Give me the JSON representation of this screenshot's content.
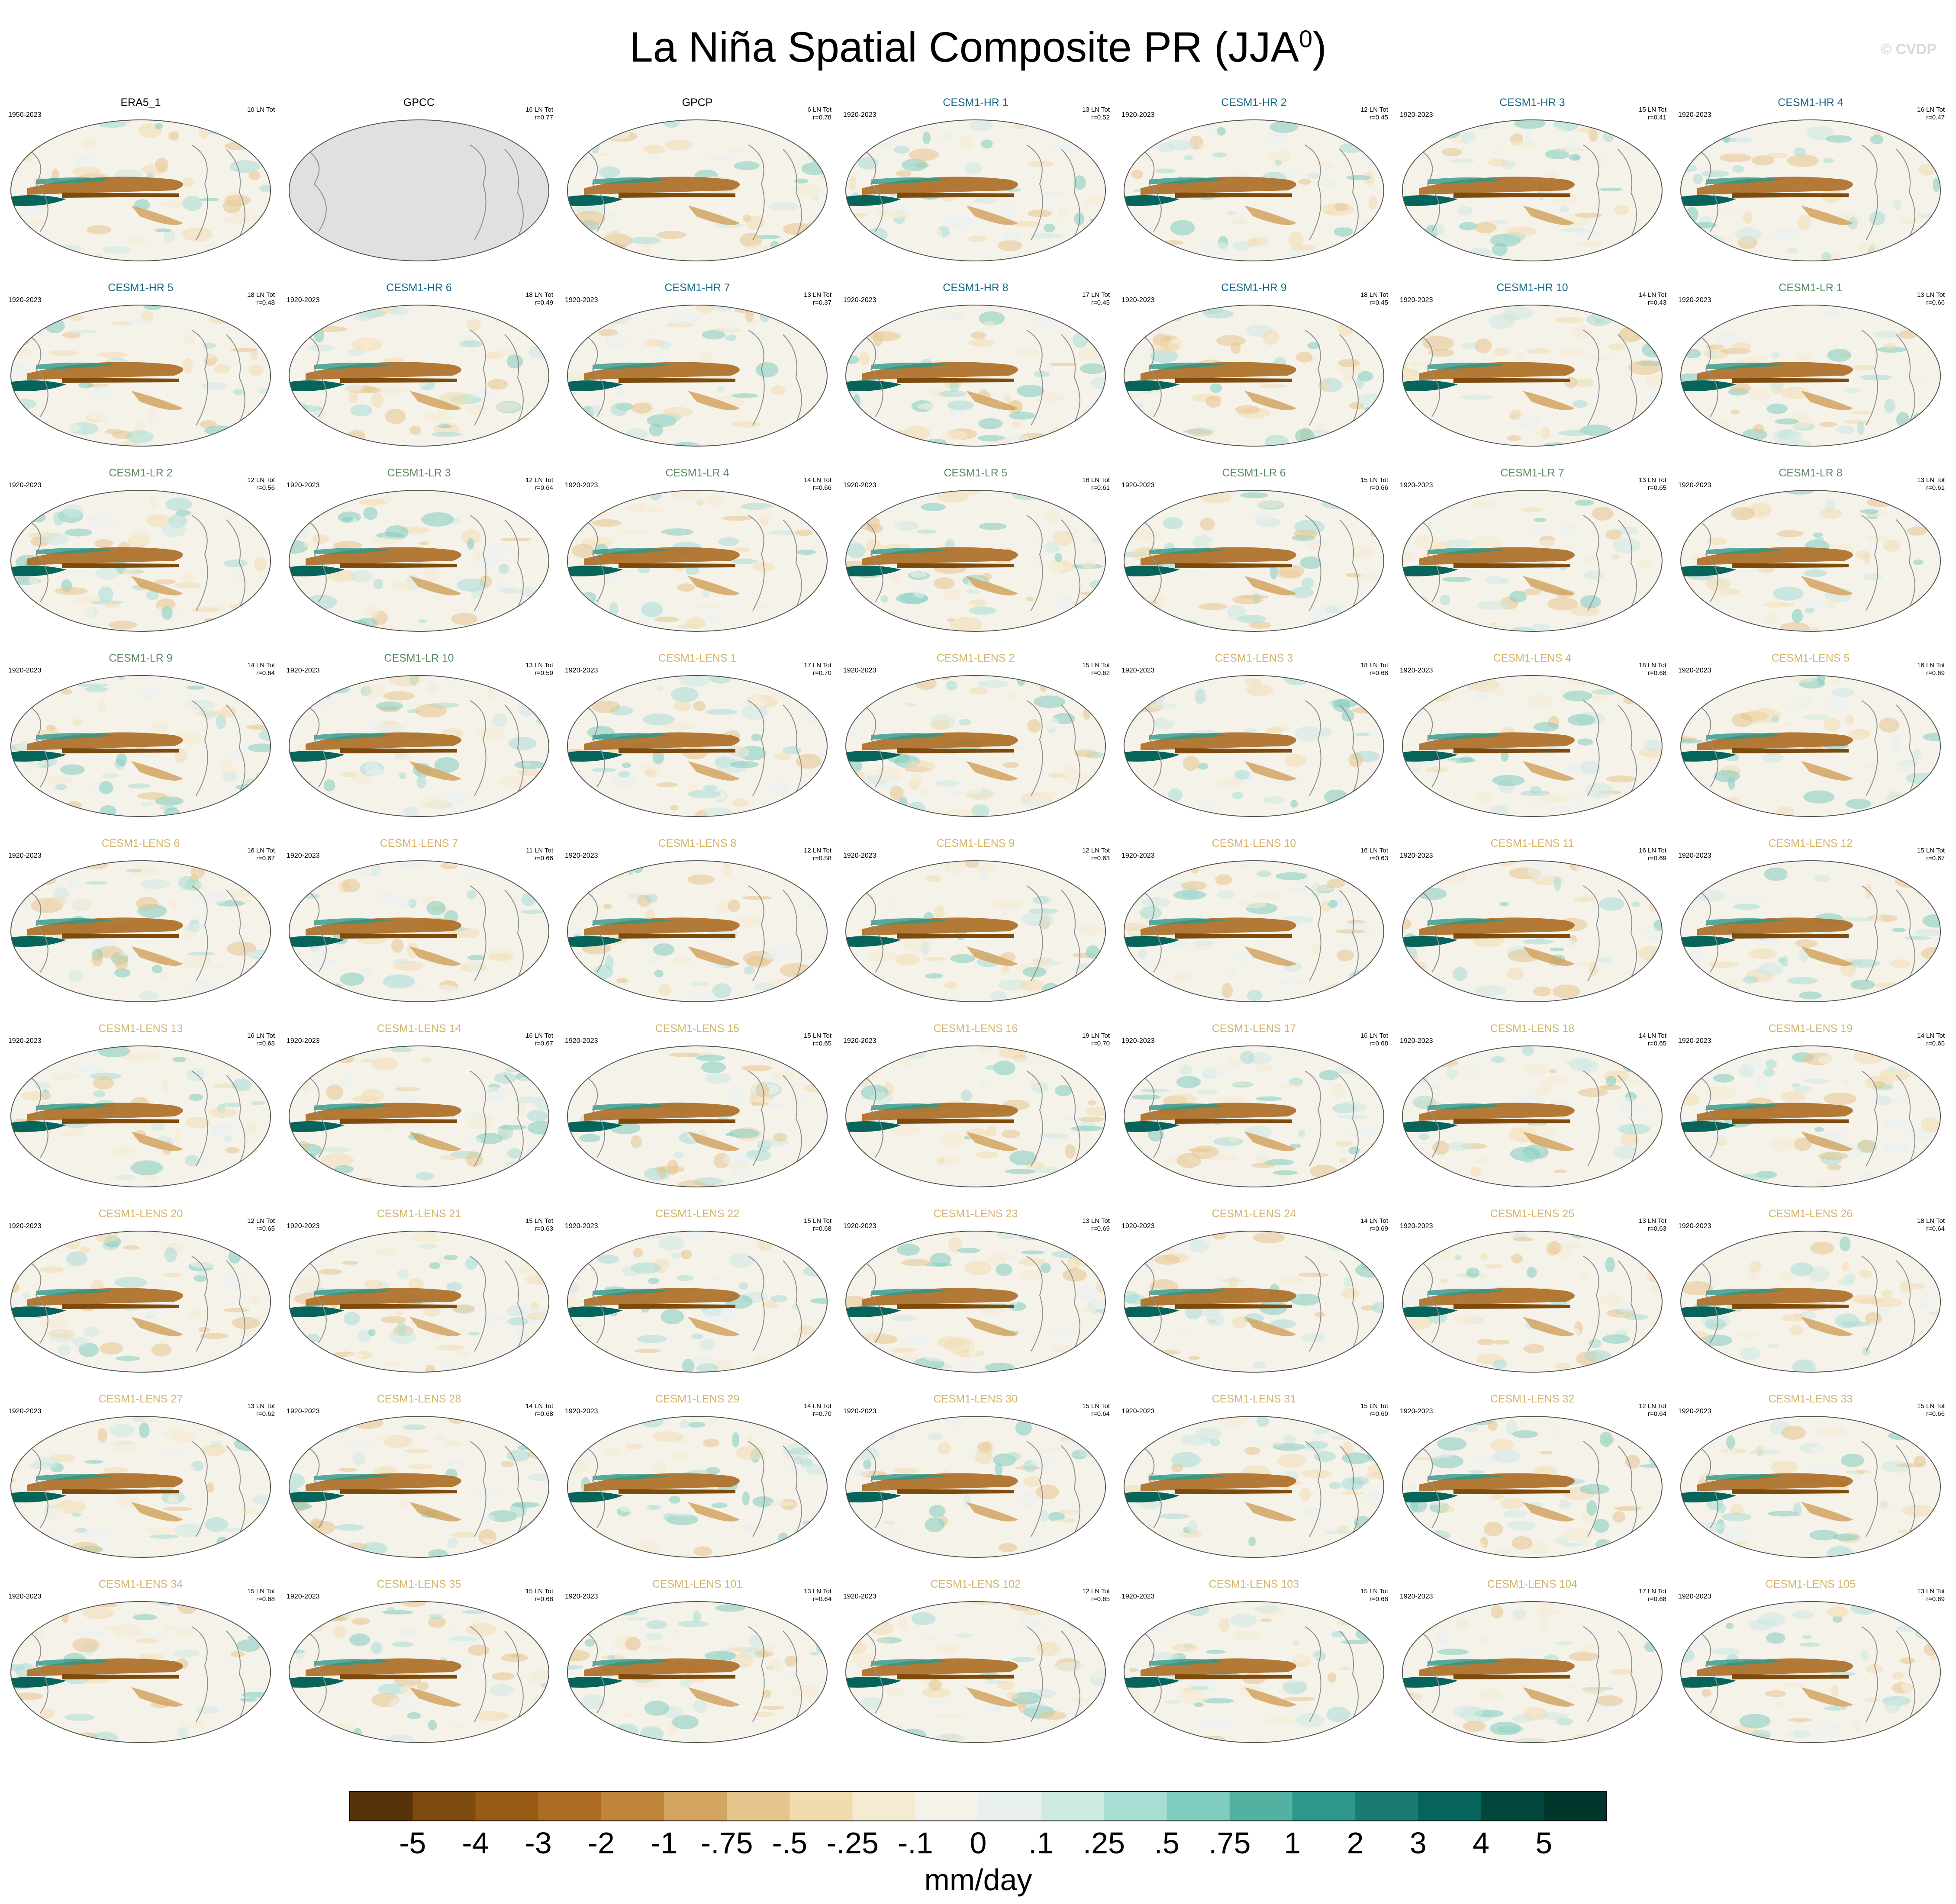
{
  "title": {
    "main": "La Niña Spatial Composite PR (JJA",
    "superscript": "0",
    "close": ")"
  },
  "credit": "© CVDP",
  "colors": {
    "observed_title": "#000000",
    "cesm1_hr_title": "#1a6a86",
    "cesm1_lr_title": "#5c8a63",
    "cesm1_lens_title": "#d4b36a",
    "land_fill_gpcc": "#e0e0e0",
    "coastline": "#8c8c8c"
  },
  "chart_data": {
    "type": "heatmap",
    "description_unit": "mm/day",
    "projection": "global ellipse (Robinson-like), Pacific-centered",
    "grid": {
      "rows": 9,
      "cols": 7
    },
    "colorbar": {
      "label": "mm/day",
      "tick_labels": [
        "-5",
        "-4",
        "-3",
        "-2",
        "-1",
        "-.75",
        "-.5",
        "-.25",
        "-.1",
        "0",
        ".1",
        ".25",
        ".5",
        ".75",
        "1",
        "2",
        "3",
        "4",
        "5"
      ],
      "colors": [
        "#573309",
        "#7e4b0f",
        "#985b16",
        "#ac6c23",
        "#bf8539",
        "#d2a561",
        "#e5c58c",
        "#f1dcb0",
        "#f5ebd2",
        "#f5f2ea",
        "#e8f1ee",
        "#cdeae3",
        "#a8ddd3",
        "#80ccbe",
        "#53b1a2",
        "#2d978a",
        "#1a7c70",
        "#06645a",
        "#02473d",
        "#01362d"
      ]
    },
    "panels": [
      {
        "name": "ERA5_1",
        "group": "obs",
        "period": "1950-2023",
        "count": "10 LN Tot",
        "r": ""
      },
      {
        "name": "GPCC",
        "group": "obs",
        "period": "",
        "count": "16 LN Tot",
        "r": "r=0.77",
        "no_data": true
      },
      {
        "name": "GPCP",
        "group": "obs",
        "period": "",
        "count": "6 LN Tot",
        "r": "r=0.78"
      },
      {
        "name": "CESM1-HR 1",
        "group": "hr",
        "period": "1920-2023",
        "count": "13 LN Tot",
        "r": "r=0.52"
      },
      {
        "name": "CESM1-HR 2",
        "group": "hr",
        "period": "1920-2023",
        "count": "12 LN Tot",
        "r": "r=0.45"
      },
      {
        "name": "CESM1-HR 3",
        "group": "hr",
        "period": "1920-2023",
        "count": "15 LN Tot",
        "r": "r=0.41"
      },
      {
        "name": "CESM1-HR 4",
        "group": "hr",
        "period": "1920-2023",
        "count": "16 LN Tot",
        "r": "r=0.47"
      },
      {
        "name": "CESM1-HR 5",
        "group": "hr",
        "period": "1920-2023",
        "count": "18 LN Tot",
        "r": "r=0.48"
      },
      {
        "name": "CESM1-HR 6",
        "group": "hr",
        "period": "1920-2023",
        "count": "18 LN Tot",
        "r": "r=0.49"
      },
      {
        "name": "CESM1-HR 7",
        "group": "hr",
        "period": "1920-2023",
        "count": "13 LN Tot",
        "r": "r=0.37"
      },
      {
        "name": "CESM1-HR 8",
        "group": "hr",
        "period": "1920-2023",
        "count": "17 LN Tot",
        "r": "r=0.45"
      },
      {
        "name": "CESM1-HR 9",
        "group": "hr",
        "period": "1920-2023",
        "count": "18 LN Tot",
        "r": "r=0.45"
      },
      {
        "name": "CESM1-HR 10",
        "group": "hr",
        "period": "1920-2023",
        "count": "14 LN Tot",
        "r": "r=0.43"
      },
      {
        "name": "CESM1-LR 1",
        "group": "lr",
        "period": "1920-2023",
        "count": "13 LN Tot",
        "r": "r=0.66"
      },
      {
        "name": "CESM1-LR 2",
        "group": "lr",
        "period": "1920-2023",
        "count": "12 LN Tot",
        "r": "r=0.56"
      },
      {
        "name": "CESM1-LR 3",
        "group": "lr",
        "period": "1920-2023",
        "count": "12 LN Tot",
        "r": "r=0.64"
      },
      {
        "name": "CESM1-LR 4",
        "group": "lr",
        "period": "1920-2023",
        "count": "14 LN Tot",
        "r": "r=0.66"
      },
      {
        "name": "CESM1-LR 5",
        "group": "lr",
        "period": "1920-2023",
        "count": "16 LN Tot",
        "r": "r=0.61"
      },
      {
        "name": "CESM1-LR 6",
        "group": "lr",
        "period": "1920-2023",
        "count": "15 LN Tot",
        "r": "r=0.66"
      },
      {
        "name": "CESM1-LR 7",
        "group": "lr",
        "period": "1920-2023",
        "count": "13 LN Tot",
        "r": "r=0.65"
      },
      {
        "name": "CESM1-LR 8",
        "group": "lr",
        "period": "1920-2023",
        "count": "13 LN Tot",
        "r": "r=0.61"
      },
      {
        "name": "CESM1-LR 9",
        "group": "lr",
        "period": "1920-2023",
        "count": "14 LN Tot",
        "r": "r=0.64"
      },
      {
        "name": "CESM1-LR 10",
        "group": "lr",
        "period": "1920-2023",
        "count": "13 LN Tot",
        "r": "r=0.59"
      },
      {
        "name": "CESM1-LENS 1",
        "group": "lens",
        "period": "1920-2023",
        "count": "17 LN Tot",
        "r": "r=0.70"
      },
      {
        "name": "CESM1-LENS 2",
        "group": "lens",
        "period": "1920-2023",
        "count": "15 LN Tot",
        "r": "r=0.62"
      },
      {
        "name": "CESM1-LENS 3",
        "group": "lens",
        "period": "1920-2023",
        "count": "18 LN Tot",
        "r": "r=0.68"
      },
      {
        "name": "CESM1-LENS 4",
        "group": "lens",
        "period": "1920-2023",
        "count": "18 LN Tot",
        "r": "r=0.68"
      },
      {
        "name": "CESM1-LENS 5",
        "group": "lens",
        "period": "1920-2023",
        "count": "16 LN Tot",
        "r": "r=0.69"
      },
      {
        "name": "CESM1-LENS 6",
        "group": "lens",
        "period": "1920-2023",
        "count": "16 LN Tot",
        "r": "r=0.67"
      },
      {
        "name": "CESM1-LENS 7",
        "group": "lens",
        "period": "1920-2023",
        "count": "11 LN Tot",
        "r": "r=0.66"
      },
      {
        "name": "CESM1-LENS 8",
        "group": "lens",
        "period": "1920-2023",
        "count": "12 LN Tot",
        "r": "r=0.58"
      },
      {
        "name": "CESM1-LENS 9",
        "group": "lens",
        "period": "1920-2023",
        "count": "12 LN Tot",
        "r": "r=0.63"
      },
      {
        "name": "CESM1-LENS 10",
        "group": "lens",
        "period": "1920-2023",
        "count": "16 LN Tot",
        "r": "r=0.63"
      },
      {
        "name": "CESM1-LENS 11",
        "group": "lens",
        "period": "1920-2023",
        "count": "16 LN Tot",
        "r": "r=0.69"
      },
      {
        "name": "CESM1-LENS 12",
        "group": "lens",
        "period": "1920-2023",
        "count": "15 LN Tot",
        "r": "r=0.67"
      },
      {
        "name": "CESM1-LENS 13",
        "group": "lens",
        "period": "1920-2023",
        "count": "16 LN Tot",
        "r": "r=0.68"
      },
      {
        "name": "CESM1-LENS 14",
        "group": "lens",
        "period": "1920-2023",
        "count": "16 LN Tot",
        "r": "r=0.67"
      },
      {
        "name": "CESM1-LENS 15",
        "group": "lens",
        "period": "1920-2023",
        "count": "15 LN Tot",
        "r": "r=0.65"
      },
      {
        "name": "CESM1-LENS 16",
        "group": "lens",
        "period": "1920-2023",
        "count": "19 LN Tot",
        "r": "r=0.70"
      },
      {
        "name": "CESM1-LENS 17",
        "group": "lens",
        "period": "1920-2023",
        "count": "16 LN Tot",
        "r": "r=0.68"
      },
      {
        "name": "CESM1-LENS 18",
        "group": "lens",
        "period": "1920-2023",
        "count": "14 LN Tot",
        "r": "r=0.65"
      },
      {
        "name": "CESM1-LENS 19",
        "group": "lens",
        "period": "1920-2023",
        "count": "14 LN Tot",
        "r": "r=0.65"
      },
      {
        "name": "CESM1-LENS 20",
        "group": "lens",
        "period": "1920-2023",
        "count": "12 LN Tot",
        "r": "r=0.65"
      },
      {
        "name": "CESM1-LENS 21",
        "group": "lens",
        "period": "1920-2023",
        "count": "15 LN Tot",
        "r": "r=0.63"
      },
      {
        "name": "CESM1-LENS 22",
        "group": "lens",
        "period": "1920-2023",
        "count": "15 LN Tot",
        "r": "r=0.68"
      },
      {
        "name": "CESM1-LENS 23",
        "group": "lens",
        "period": "1920-2023",
        "count": "13 LN Tot",
        "r": "r=0.69"
      },
      {
        "name": "CESM1-LENS 24",
        "group": "lens",
        "period": "1920-2023",
        "count": "14 LN Tot",
        "r": "r=0.69"
      },
      {
        "name": "CESM1-LENS 25",
        "group": "lens",
        "period": "1920-2023",
        "count": "13 LN Tot",
        "r": "r=0.63"
      },
      {
        "name": "CESM1-LENS 26",
        "group": "lens",
        "period": "1920-2023",
        "count": "18 LN Tot",
        "r": "r=0.64"
      },
      {
        "name": "CESM1-LENS 27",
        "group": "lens",
        "period": "1920-2023",
        "count": "13 LN Tot",
        "r": "r=0.62"
      },
      {
        "name": "CESM1-LENS 28",
        "group": "lens",
        "period": "1920-2023",
        "count": "14 LN Tot",
        "r": "r=0.68"
      },
      {
        "name": "CESM1-LENS 29",
        "group": "lens",
        "period": "1920-2023",
        "count": "14 LN Tot",
        "r": "r=0.70"
      },
      {
        "name": "CESM1-LENS 30",
        "group": "lens",
        "period": "1920-2023",
        "count": "15 LN Tot",
        "r": "r=0.64"
      },
      {
        "name": "CESM1-LENS 31",
        "group": "lens",
        "period": "1920-2023",
        "count": "15 LN Tot",
        "r": "r=0.69"
      },
      {
        "name": "CESM1-LENS 32",
        "group": "lens",
        "period": "1920-2023",
        "count": "12 LN Tot",
        "r": "r=0.64"
      },
      {
        "name": "CESM1-LENS 33",
        "group": "lens",
        "period": "1920-2023",
        "count": "15 LN Tot",
        "r": "r=0.66"
      },
      {
        "name": "CESM1-LENS 34",
        "group": "lens",
        "period": "1920-2023",
        "count": "15 LN Tot",
        "r": "r=0.68"
      },
      {
        "name": "CESM1-LENS 35",
        "group": "lens",
        "period": "1920-2023",
        "count": "15 LN Tot",
        "r": "r=0.68"
      },
      {
        "name": "CESM1-LENS 101",
        "group": "lens",
        "period": "1920-2023",
        "count": "13 LN Tot",
        "r": "r=0.64"
      },
      {
        "name": "CESM1-LENS 102",
        "group": "lens",
        "period": "1920-2023",
        "count": "12 LN Tot",
        "r": "r=0.65"
      },
      {
        "name": "CESM1-LENS 103",
        "group": "lens",
        "period": "1920-2023",
        "count": "15 LN Tot",
        "r": "r=0.68"
      },
      {
        "name": "CESM1-LENS 104",
        "group": "lens",
        "period": "1920-2023",
        "count": "17 LN Tot",
        "r": "r=0.68"
      },
      {
        "name": "CESM1-LENS 105",
        "group": "lens",
        "period": "1920-2023",
        "count": "13 LN Tot",
        "r": "r=0.69"
      }
    ]
  }
}
